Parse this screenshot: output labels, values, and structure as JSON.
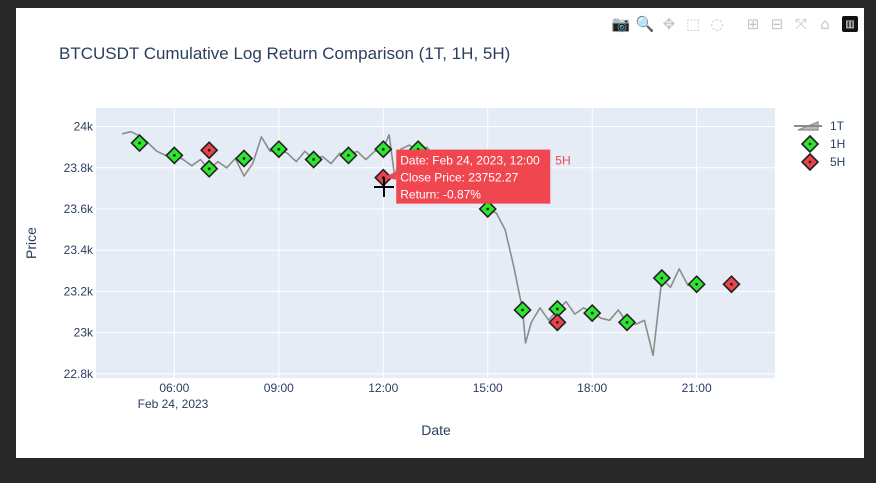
{
  "modebar": {
    "buttons": [
      {
        "name": "camera-icon",
        "glyph": "📷",
        "active": false
      },
      {
        "name": "zoom-icon",
        "glyph": "🔍",
        "active": true
      },
      {
        "name": "pan-icon",
        "glyph": "✥",
        "active": false
      },
      {
        "name": "box-select-icon",
        "glyph": "⬚",
        "active": false
      },
      {
        "name": "lasso-select-icon",
        "glyph": "◌",
        "active": false
      },
      {
        "name": "zoom-in-icon",
        "glyph": "⊞",
        "active": false
      },
      {
        "name": "zoom-out-icon",
        "glyph": "⊟",
        "active": false
      },
      {
        "name": "autoscale-icon",
        "glyph": "⤧",
        "active": false
      },
      {
        "name": "reset-axes-icon",
        "glyph": "⌂",
        "active": false
      }
    ],
    "logo_glyph": "▥"
  },
  "colors": {
    "plot_bg": "#e5ecf6",
    "grid": "#ffffff",
    "line_1t": "#8c8c8c",
    "marker_1h": "#2ee62e",
    "marker_5h": "#e8434a",
    "marker_edge": "#222222",
    "text": "#2a3f5f",
    "tooltip_bg": "#ef464f"
  },
  "tooltip": {
    "lines": [
      "Date: Feb 24, 2023, 12:00",
      "Close Price: 23752.27",
      "Return: -0.87%"
    ],
    "side_label": "5H"
  },
  "chart_data": {
    "type": "line",
    "title": "BTCUSDT Cumulative Log Return Comparison (1T, 1H, 5H)",
    "xlabel": "Date",
    "ylabel": "Price",
    "x_tick_values": [
      "06:00",
      "09:00",
      "12:00",
      "15:00",
      "18:00",
      "21:00"
    ],
    "x_tick_labels": [
      "06:00",
      "09:00",
      "12:00",
      "15:00",
      "18:00",
      "21:00"
    ],
    "x_date_label": "Feb 24, 2023",
    "xlim": [
      "Feb 24, 2023 03:45",
      "Feb 24, 2023 23:15"
    ],
    "y_ticks": [
      22800,
      23000,
      23200,
      23400,
      23600,
      23800,
      24000
    ],
    "y_tick_labels": [
      "22.8k",
      "23k",
      "23.2k",
      "23.4k",
      "23.6k",
      "23.8k",
      "24k"
    ],
    "ylim": [
      22780,
      24090
    ],
    "grid": true,
    "legend_placement": "top-right",
    "series": [
      {
        "name": "1T",
        "mode": "line",
        "x": [
          "04:30",
          "04:45",
          "05:00",
          "05:15",
          "05:30",
          "05:45",
          "06:00",
          "06:15",
          "06:30",
          "06:45",
          "07:00",
          "07:15",
          "07:30",
          "07:45",
          "08:00",
          "08:15",
          "08:30",
          "08:45",
          "09:00",
          "09:15",
          "09:30",
          "09:45",
          "10:00",
          "10:15",
          "10:30",
          "10:45",
          "11:00",
          "11:15",
          "11:30",
          "11:45",
          "12:00",
          "12:10",
          "12:20",
          "12:30",
          "12:45",
          "13:00",
          "13:15",
          "13:30",
          "13:45",
          "14:00",
          "14:15",
          "14:30",
          "14:45",
          "15:00",
          "15:15",
          "15:30",
          "15:45",
          "16:00",
          "16:05",
          "16:15",
          "16:30",
          "16:45",
          "17:00",
          "17:15",
          "17:30",
          "17:45",
          "18:00",
          "18:15",
          "18:30",
          "18:45",
          "19:00",
          "19:15",
          "19:30",
          "19:45",
          "20:00",
          "20:15",
          "20:30",
          "20:45",
          "21:00"
        ],
        "values": [
          23965,
          23975,
          23955,
          23920,
          23880,
          23860,
          23865,
          23840,
          23810,
          23840,
          23790,
          23830,
          23800,
          23845,
          23760,
          23820,
          23950,
          23880,
          23890,
          23870,
          23830,
          23880,
          23840,
          23855,
          23820,
          23870,
          23860,
          23880,
          23840,
          23880,
          23895,
          23960,
          23750,
          23890,
          23910,
          23880,
          23900,
          23850,
          23780,
          23760,
          23730,
          23700,
          23680,
          23600,
          23580,
          23500,
          23320,
          23110,
          22950,
          23050,
          23120,
          23060,
          23110,
          23150,
          23090,
          23120,
          23100,
          23070,
          23060,
          23110,
          23050,
          23040,
          23060,
          22890,
          23260,
          23220,
          23310,
          23230,
          23230
        ]
      },
      {
        "name": "1H",
        "mode": "markers",
        "x": [
          "05:00",
          "06:00",
          "07:00",
          "08:00",
          "09:00",
          "10:00",
          "11:00",
          "12:00",
          "13:00",
          "15:00",
          "16:00",
          "17:00",
          "18:00",
          "19:00",
          "20:00",
          "21:00"
        ],
        "values": [
          23920,
          23860,
          23795,
          23845,
          23890,
          23840,
          23860,
          23890,
          23890,
          23600,
          23110,
          23115,
          23095,
          23050,
          23265,
          23235
        ]
      },
      {
        "name": "5H",
        "mode": "markers",
        "x": [
          "07:00",
          "12:00",
          "17:00",
          "22:00"
        ],
        "values": [
          23885,
          23752.27,
          23050,
          23235
        ]
      }
    ]
  }
}
